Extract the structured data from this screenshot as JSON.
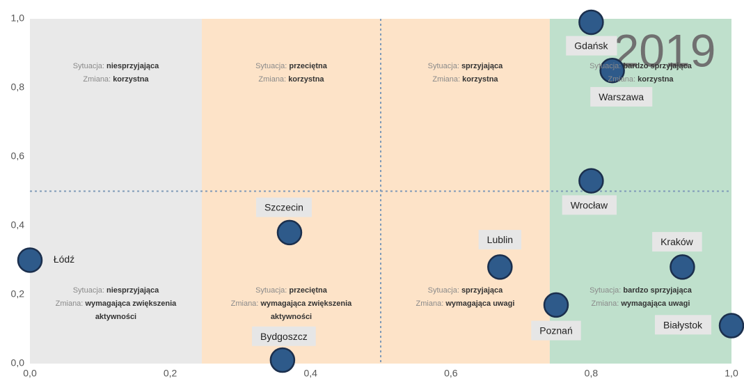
{
  "chart_data": {
    "type": "scatter",
    "annotation": "2019",
    "situation_prefix": "Sytuacja:",
    "change_prefix": "Zmiana:",
    "xlim": [
      0,
      1
    ],
    "ylim": [
      0,
      1
    ],
    "xticks": [
      {
        "value": 0,
        "label": "0,0"
      },
      {
        "value": 0.2,
        "label": "0,2"
      },
      {
        "value": 0.4,
        "label": "0,4"
      },
      {
        "value": 0.6,
        "label": "0,6"
      },
      {
        "value": 0.8,
        "label": "0,8"
      },
      {
        "value": 1,
        "label": "1,0"
      }
    ],
    "yticks": [
      {
        "value": 0,
        "label": "0,0"
      },
      {
        "value": 0.2,
        "label": "0,2"
      },
      {
        "value": 0.4,
        "label": "0,4"
      },
      {
        "value": 0.6,
        "label": "0,6"
      },
      {
        "value": 0.8,
        "label": "0,8"
      },
      {
        "value": 1,
        "label": "1,0"
      }
    ],
    "bands": [
      {
        "x0": 0,
        "x1": 0.245,
        "color": "#e9e9e9"
      },
      {
        "x0": 0.245,
        "x1": 0.5,
        "color": "#fde3c8"
      },
      {
        "x0": 0.5,
        "x1": 0.741,
        "color": "#fde3c8"
      },
      {
        "x0": 0.741,
        "x1": 1,
        "color": "#bfe0cc"
      }
    ],
    "vlines": [
      0.5
    ],
    "hlines": [
      0.5
    ],
    "quadrants": [
      {
        "situation": "niesprzyjająca",
        "change": "korzystna"
      },
      {
        "situation": "przeciętna",
        "change": "korzystna"
      },
      {
        "situation": "sprzyjająca",
        "change": "korzystna"
      },
      {
        "situation": "bardzo sprzyjająca",
        "change": "korzystna"
      },
      {
        "situation": "niesprzyjająca",
        "change": "wymagająca zwiększenia aktywności"
      },
      {
        "situation": "przeciętna",
        "change": "wymagająca zwiększenia aktywności"
      },
      {
        "situation": "sprzyjająca",
        "change": "wymagająca uwagi"
      },
      {
        "situation": "bardzo sprzyjająca",
        "change": "wymagająca uwagi"
      }
    ],
    "color": "#2e5a8a",
    "points": [
      {
        "label": "Gdańsk",
        "x": 0.8,
        "y": 0.99
      },
      {
        "label": "Warszawa",
        "x": 0.83,
        "y": 0.85
      },
      {
        "label": "Wrocław",
        "x": 0.8,
        "y": 0.53
      },
      {
        "label": "Szczecin",
        "x": 0.37,
        "y": 0.38
      },
      {
        "label": "Łódź",
        "x": 0.0,
        "y": 0.3
      },
      {
        "label": "Lublin",
        "x": 0.67,
        "y": 0.28
      },
      {
        "label": "Kraków",
        "x": 0.93,
        "y": 0.28
      },
      {
        "label": "Poznań",
        "x": 0.75,
        "y": 0.17
      },
      {
        "label": "Białystok",
        "x": 1.0,
        "y": 0.11
      },
      {
        "label": "Bydgoszcz",
        "x": 0.36,
        "y": 0.01
      }
    ]
  }
}
